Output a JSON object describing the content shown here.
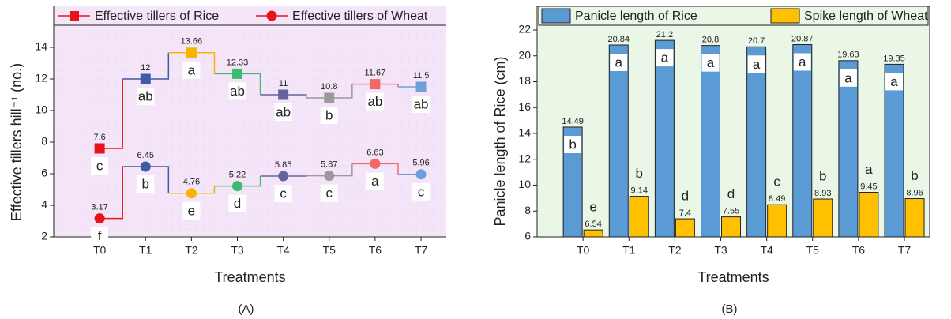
{
  "chart_data": [
    {
      "type": "line",
      "step": true,
      "caption": "(A)",
      "xlabel": "Treatments",
      "ylabel": "Effective tillers hill⁻¹ (no.)",
      "categories": [
        "T0",
        "T1",
        "T2",
        "T3",
        "T4",
        "T5",
        "T6",
        "T7"
      ],
      "point_colors": [
        "#e8141c",
        "#3e5ba6",
        "#f7b500",
        "#3dba6f",
        "#64649f",
        "#9a9a9a",
        "#f26868",
        "#6ca0dc"
      ],
      "series": [
        {
          "name": "Effective tillers of Rice",
          "color": "#e8141c",
          "marker": "square",
          "values": [
            7.6,
            12,
            13.66,
            12.33,
            11,
            10.8,
            11.67,
            11.5
          ],
          "letters": [
            "c",
            "ab",
            "a",
            "ab",
            "ab",
            "b",
            "ab",
            "ab"
          ]
        },
        {
          "name": "Effective tillers of Wheat",
          "color": "#e8141c",
          "marker": "circle",
          "values": [
            3.17,
            6.45,
            4.76,
            5.22,
            5.85,
            5.87,
            6.63,
            5.96
          ],
          "letters": [
            "f",
            "b",
            "e",
            "d",
            "c",
            "c",
            "a",
            "c"
          ]
        }
      ],
      "ylim": [
        2,
        15
      ],
      "yticks": [
        2,
        4,
        6,
        8,
        10,
        12,
        14
      ],
      "grid": true,
      "legend": "top",
      "background": "#f4e6f8"
    },
    {
      "type": "bar",
      "caption": "(B)",
      "xlabel": "Treatments",
      "ylabel": "Panicle length of Rice (cm)",
      "categories": [
        "T0",
        "T1",
        "T2",
        "T3",
        "T4",
        "T5",
        "T6",
        "T7"
      ],
      "series": [
        {
          "name": "Panicle length of Rice",
          "color": "#5b9bd5",
          "values": [
            14.49,
            20.84,
            21.2,
            20.8,
            20.7,
            20.87,
            19.63,
            19.35
          ],
          "letters": [
            "b",
            "a",
            "a",
            "a",
            "a",
            "a",
            "a",
            "a"
          ]
        },
        {
          "name": "Spike length of Wheat",
          "color": "#ffc000",
          "values": [
            6.54,
            9.14,
            7.4,
            7.55,
            8.49,
            8.93,
            9.45,
            8.96
          ],
          "letters": [
            "e",
            "b",
            "d",
            "d",
            "c",
            "b",
            "a",
            "b"
          ]
        }
      ],
      "ylim": [
        6,
        22
      ],
      "yticks": [
        6,
        8,
        10,
        12,
        14,
        16,
        18,
        20,
        22
      ],
      "grid": false,
      "legend": "top",
      "background": "#eaf7e6"
    }
  ]
}
